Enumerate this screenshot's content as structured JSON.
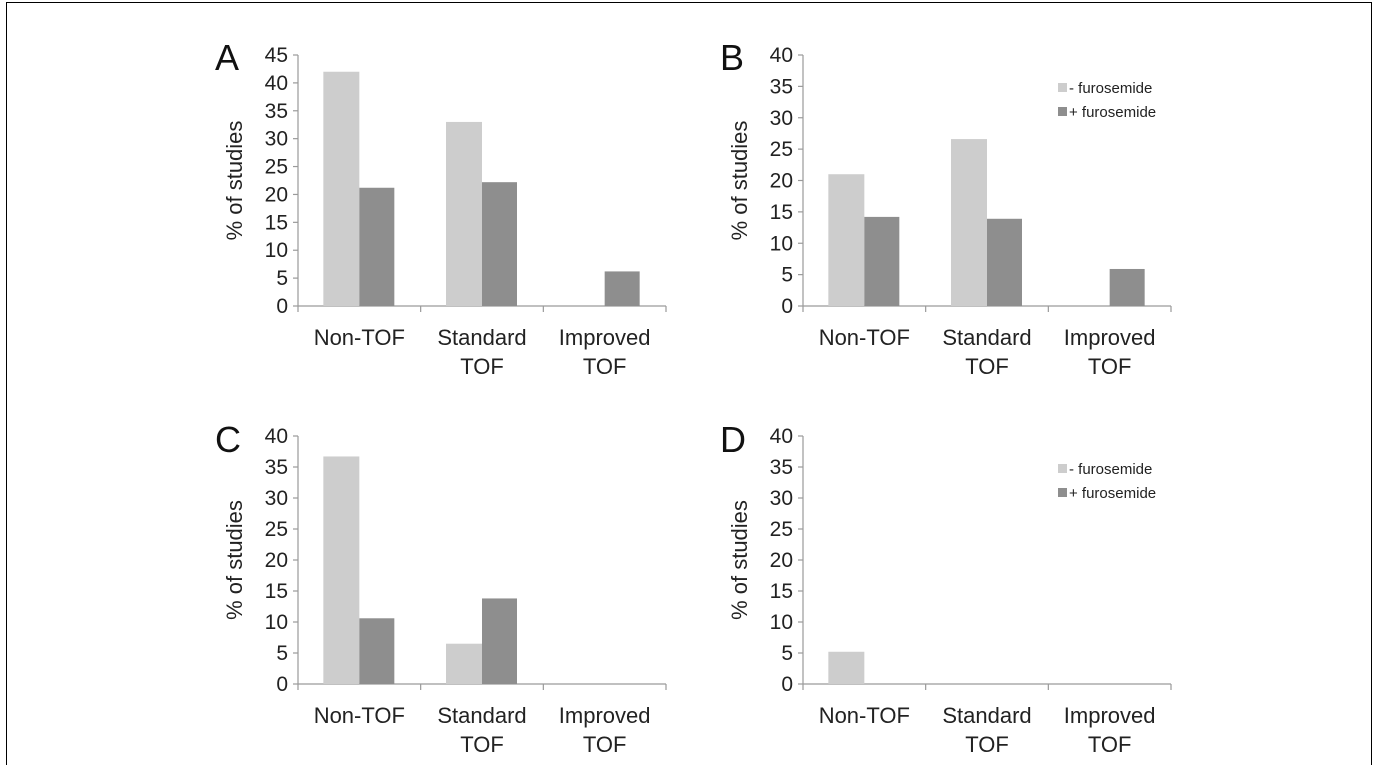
{
  "colors": {
    "minus_furosemide": "#cdcdcd",
    "plus_furosemide": "#8e8e8e",
    "axis": "#9a9a9a"
  },
  "chart_data": [
    {
      "type": "bar",
      "panel_label": "A",
      "categories": [
        "Non-TOF",
        "Standard TOF",
        "Improved TOF"
      ],
      "series": [
        {
          "name": "- furosemide",
          "values": [
            42,
            33,
            0
          ]
        },
        {
          "name": "+ furosemide",
          "values": [
            21.2,
            22.2,
            6.2
          ]
        }
      ],
      "ylabel": "% of studies",
      "ylim": [
        0,
        45
      ],
      "yticks": [
        0,
        5,
        10,
        15,
        20,
        25,
        30,
        35,
        40,
        45
      ],
      "legend": false
    },
    {
      "type": "bar",
      "panel_label": "B",
      "categories": [
        "Non-TOF",
        "Standard TOF",
        "Improved TOF"
      ],
      "series": [
        {
          "name": "- furosemide",
          "values": [
            21,
            26.6,
            0
          ]
        },
        {
          "name": "+ furosemide",
          "values": [
            14.2,
            13.9,
            5.9
          ]
        }
      ],
      "ylabel": "% of studies",
      "ylim": [
        0,
        40
      ],
      "yticks": [
        0,
        5,
        10,
        15,
        20,
        25,
        30,
        35,
        40
      ],
      "legend": "top-right"
    },
    {
      "type": "bar",
      "panel_label": "C",
      "categories": [
        "Non-TOF",
        "Standard TOF",
        "Improved TOF"
      ],
      "series": [
        {
          "name": "- furosemide",
          "values": [
            36.7,
            6.5,
            0
          ]
        },
        {
          "name": "+ furosemide",
          "values": [
            10.6,
            13.8,
            0
          ]
        }
      ],
      "ylabel": "% of studies",
      "ylim": [
        0,
        40
      ],
      "yticks": [
        0,
        5,
        10,
        15,
        20,
        25,
        30,
        35,
        40
      ],
      "legend": false
    },
    {
      "type": "bar",
      "panel_label": "D",
      "categories": [
        "Non-TOF",
        "Standard TOF",
        "Improved TOF"
      ],
      "series": [
        {
          "name": "- furosemide",
          "values": [
            5.2,
            0,
            0
          ]
        },
        {
          "name": "+ furosemide",
          "values": [
            0,
            0,
            0
          ]
        }
      ],
      "ylabel": "% of studies",
      "ylim": [
        0,
        40
      ],
      "yticks": [
        0,
        5,
        10,
        15,
        20,
        25,
        30,
        35,
        40
      ],
      "legend": "top-right"
    }
  ]
}
